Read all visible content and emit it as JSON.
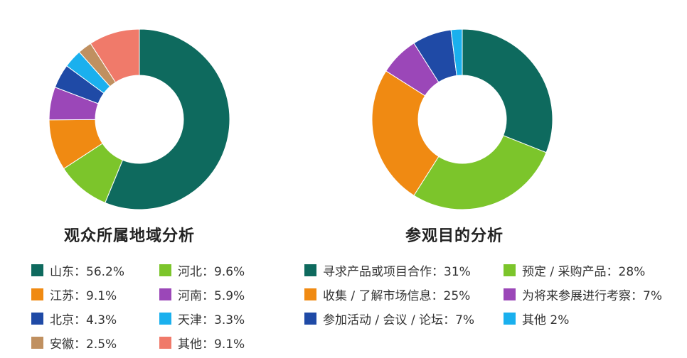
{
  "chart_data": [
    {
      "type": "pie",
      "title": "观众所属地域分析",
      "series": [
        {
          "label": "山东：56.2%",
          "value": 56.2,
          "color": "#0e6a5e"
        },
        {
          "label": "河北：9.6%",
          "value": 9.6,
          "color": "#7cc52b"
        },
        {
          "label": "江苏：9.1%",
          "value": 9.1,
          "color": "#f08a12"
        },
        {
          "label": "河南：5.9%",
          "value": 5.9,
          "color": "#9b47b8"
        },
        {
          "label": "北京：4.3%",
          "value": 4.3,
          "color": "#1f4aa6"
        },
        {
          "label": "天津：3.3%",
          "value": 3.3,
          "color": "#1ab0ee"
        },
        {
          "label": "安徽：2.5%",
          "value": 2.5,
          "color": "#c09060"
        },
        {
          "label": "其他：9.1%",
          "value": 9.1,
          "color": "#f07a6a"
        }
      ]
    },
    {
      "type": "pie",
      "title": "参观目的分析",
      "series": [
        {
          "label": "寻求产品或项目合作：31%",
          "value": 31,
          "color": "#0e6a5e"
        },
        {
          "label": "预定 / 采购产品：28%",
          "value": 28,
          "color": "#7cc52b"
        },
        {
          "label": "收集 / 了解市场信息：25%",
          "value": 25,
          "color": "#f08a12"
        },
        {
          "label": "为将来参展进行考察：7%",
          "value": 7,
          "color": "#9b47b8"
        },
        {
          "label": "参加活动 / 会议 / 论坛：7%",
          "value": 7,
          "color": "#1f4aa6"
        },
        {
          "label": "其他 2%",
          "value": 2,
          "color": "#1ab0ee"
        }
      ]
    }
  ]
}
